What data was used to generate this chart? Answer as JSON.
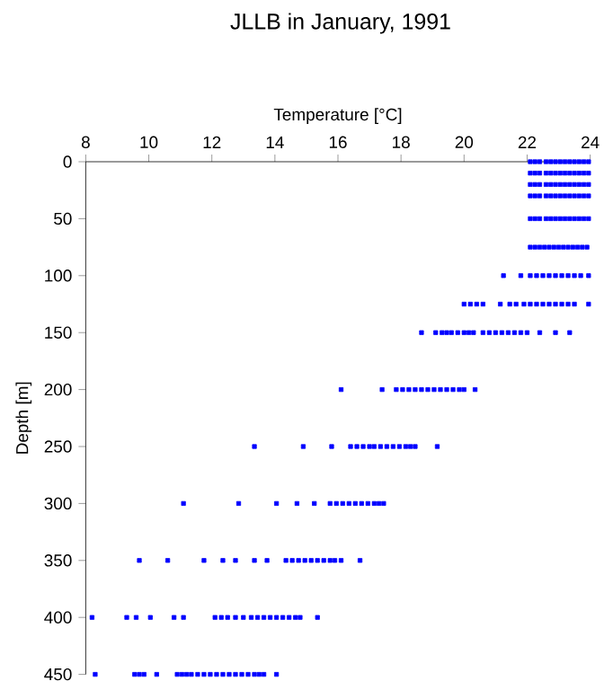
{
  "chart_data": {
    "type": "scatter",
    "title": "JLLB in January, 1991",
    "xlabel": "Temperature [°C]",
    "ylabel": "Depth [m]",
    "xlim": [
      8,
      24
    ],
    "xticks": [
      8,
      10,
      12,
      14,
      16,
      18,
      20,
      22,
      24
    ],
    "ylim": [
      450,
      0
    ],
    "yticks": [
      0,
      50,
      100,
      150,
      200,
      250,
      300,
      350,
      400,
      450
    ],
    "marker": "square",
    "color": "#0000ff",
    "x": [
      22.1,
      22.25,
      22.4,
      22.6,
      22.75,
      22.9,
      23.05,
      23.2,
      23.35,
      23.5,
      23.65,
      23.8,
      23.95,
      22.1,
      22.25,
      22.4,
      22.6,
      22.75,
      22.9,
      23.05,
      23.2,
      23.35,
      23.5,
      23.65,
      23.8,
      23.95,
      22.1,
      22.25,
      22.4,
      22.6,
      22.75,
      22.9,
      23.05,
      23.2,
      23.35,
      23.5,
      23.65,
      23.8,
      23.95,
      22.1,
      22.25,
      22.4,
      22.6,
      22.75,
      22.9,
      23.05,
      23.2,
      23.35,
      23.5,
      23.65,
      23.8,
      23.95,
      22.1,
      22.25,
      22.4,
      22.6,
      22.75,
      22.9,
      23.05,
      23.2,
      23.35,
      23.5,
      23.65,
      23.8,
      23.95,
      22.1,
      22.25,
      22.4,
      22.55,
      22.7,
      22.85,
      23.0,
      23.15,
      23.3,
      23.45,
      23.6,
      23.75,
      23.9,
      21.25,
      21.8,
      22.1,
      22.3,
      22.5,
      22.7,
      22.9,
      23.1,
      23.3,
      23.5,
      23.7,
      23.95,
      20.0,
      20.2,
      20.4,
      20.6,
      21.15,
      21.45,
      21.65,
      21.9,
      22.1,
      22.3,
      22.5,
      22.7,
      22.9,
      23.1,
      23.3,
      23.5,
      23.95,
      18.65,
      19.1,
      19.3,
      19.45,
      19.6,
      19.8,
      20.0,
      20.15,
      20.3,
      20.6,
      20.8,
      21.0,
      21.2,
      21.4,
      21.6,
      21.8,
      22.0,
      22.4,
      22.9,
      23.35,
      16.1,
      17.4,
      17.85,
      18.05,
      18.25,
      18.45,
      18.65,
      18.85,
      19.05,
      19.25,
      19.45,
      19.65,
      19.85,
      20.0,
      20.35,
      13.35,
      14.9,
      15.8,
      16.4,
      16.6,
      16.8,
      17.0,
      17.15,
      17.35,
      17.55,
      17.75,
      17.95,
      18.15,
      18.3,
      18.45,
      19.15,
      11.1,
      12.85,
      14.05,
      14.7,
      15.25,
      15.75,
      15.95,
      16.15,
      16.35,
      16.55,
      16.75,
      16.95,
      17.15,
      17.3,
      17.45,
      9.7,
      10.6,
      11.75,
      12.35,
      12.75,
      13.35,
      13.75,
      14.35,
      14.55,
      14.75,
      14.95,
      15.15,
      15.35,
      15.55,
      15.75,
      15.9,
      16.1,
      16.7,
      8.2,
      9.3,
      9.6,
      10.05,
      10.8,
      11.1,
      12.1,
      12.3,
      12.5,
      12.75,
      13.0,
      13.25,
      13.45,
      13.65,
      13.85,
      14.05,
      14.25,
      14.45,
      14.65,
      14.8,
      15.35,
      8.3,
      9.55,
      9.7,
      9.85,
      10.25,
      10.9,
      11.05,
      11.2,
      11.35,
      11.55,
      11.75,
      11.95,
      12.15,
      12.35,
      12.55,
      12.75,
      12.95,
      13.15,
      13.35,
      13.5,
      13.65,
      14.05
    ],
    "values": [
      0,
      0,
      0,
      0,
      0,
      0,
      0,
      0,
      0,
      0,
      0,
      0,
      0,
      10,
      10,
      10,
      10,
      10,
      10,
      10,
      10,
      10,
      10,
      10,
      10,
      10,
      20,
      20,
      20,
      20,
      20,
      20,
      20,
      20,
      20,
      20,
      20,
      20,
      20,
      30,
      30,
      30,
      30,
      30,
      30,
      30,
      30,
      30,
      30,
      30,
      30,
      30,
      50,
      50,
      50,
      50,
      50,
      50,
      50,
      50,
      50,
      50,
      50,
      50,
      50,
      75,
      75,
      75,
      75,
      75,
      75,
      75,
      75,
      75,
      75,
      75,
      75,
      75,
      100,
      100,
      100,
      100,
      100,
      100,
      100,
      100,
      100,
      100,
      100,
      100,
      125,
      125,
      125,
      125,
      125,
      125,
      125,
      125,
      125,
      125,
      125,
      125,
      125,
      125,
      125,
      125,
      125,
      150,
      150,
      150,
      150,
      150,
      150,
      150,
      150,
      150,
      150,
      150,
      150,
      150,
      150,
      150,
      150,
      150,
      150,
      150,
      150,
      200,
      200,
      200,
      200,
      200,
      200,
      200,
      200,
      200,
      200,
      200,
      200,
      200,
      200,
      200,
      250,
      250,
      250,
      250,
      250,
      250,
      250,
      250,
      250,
      250,
      250,
      250,
      250,
      250,
      250,
      250,
      300,
      300,
      300,
      300,
      300,
      300,
      300,
      300,
      300,
      300,
      300,
      300,
      300,
      300,
      300,
      350,
      350,
      350,
      350,
      350,
      350,
      350,
      350,
      350,
      350,
      350,
      350,
      350,
      350,
      350,
      350,
      350,
      350,
      400,
      400,
      400,
      400,
      400,
      400,
      400,
      400,
      400,
      400,
      400,
      400,
      400,
      400,
      400,
      400,
      400,
      400,
      400,
      400,
      400,
      450,
      450,
      450,
      450,
      450,
      450,
      450,
      450,
      450,
      450,
      450,
      450,
      450,
      450,
      450,
      450,
      450,
      450,
      450,
      450,
      450,
      450
    ]
  }
}
